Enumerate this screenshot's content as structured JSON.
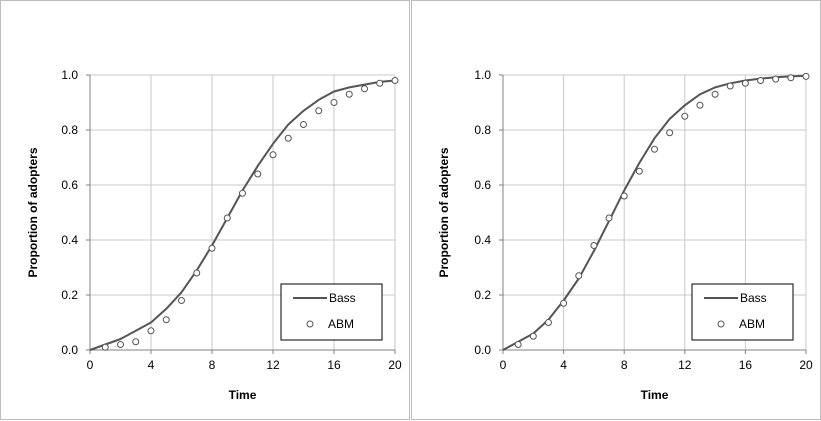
{
  "chart_data": [
    {
      "type": "line",
      "title": "",
      "xlabel": "Time",
      "ylabel": "Proportion of adopters",
      "xlim": [
        0,
        20
      ],
      "ylim": [
        0,
        1.0
      ],
      "xticks": [
        "0",
        "4",
        "8",
        "12",
        "16",
        "20"
      ],
      "yticks": [
        "0.0",
        "0.2",
        "0.4",
        "0.6",
        "0.8",
        "1.0"
      ],
      "grid": true,
      "legend_position": "bottom-right",
      "series": [
        {
          "name": "Bass",
          "style": "line",
          "color": "#555555",
          "x": [
            0,
            1,
            2,
            3,
            4,
            5,
            6,
            7,
            8,
            9,
            10,
            11,
            12,
            13,
            14,
            15,
            16,
            17,
            18,
            19,
            20
          ],
          "y": [
            0.0,
            0.02,
            0.04,
            0.07,
            0.1,
            0.15,
            0.21,
            0.29,
            0.38,
            0.48,
            0.58,
            0.67,
            0.75,
            0.82,
            0.87,
            0.91,
            0.94,
            0.955,
            0.965,
            0.975,
            0.98
          ]
        },
        {
          "name": "ABM",
          "style": "marker",
          "color": "#555555",
          "x": [
            1,
            2,
            3,
            4,
            5,
            6,
            7,
            8,
            9,
            10,
            11,
            12,
            13,
            14,
            15,
            16,
            17,
            18,
            19,
            20
          ],
          "y": [
            0.01,
            0.02,
            0.03,
            0.07,
            0.11,
            0.18,
            0.28,
            0.37,
            0.48,
            0.57,
            0.64,
            0.71,
            0.77,
            0.82,
            0.87,
            0.9,
            0.93,
            0.95,
            0.97,
            0.98
          ]
        }
      ]
    },
    {
      "type": "line",
      "title": "",
      "xlabel": "Time",
      "ylabel": "Proportion of adopters",
      "xlim": [
        0,
        20
      ],
      "ylim": [
        0,
        1.0
      ],
      "xticks": [
        "0",
        "4",
        "8",
        "12",
        "16",
        "20"
      ],
      "yticks": [
        "0.0",
        "0.2",
        "0.4",
        "0.6",
        "0.8",
        "1.0"
      ],
      "grid": true,
      "legend_position": "bottom-right",
      "series": [
        {
          "name": "Bass",
          "style": "line",
          "color": "#555555",
          "x": [
            0,
            1,
            2,
            3,
            4,
            5,
            6,
            7,
            8,
            9,
            10,
            11,
            12,
            13,
            14,
            15,
            16,
            17,
            18,
            19,
            20
          ],
          "y": [
            0.0,
            0.03,
            0.06,
            0.11,
            0.18,
            0.26,
            0.36,
            0.47,
            0.58,
            0.68,
            0.77,
            0.84,
            0.89,
            0.93,
            0.955,
            0.97,
            0.98,
            0.987,
            0.992,
            0.995,
            0.997
          ]
        },
        {
          "name": "ABM",
          "style": "marker",
          "color": "#555555",
          "x": [
            1,
            2,
            3,
            4,
            5,
            6,
            7,
            8,
            9,
            10,
            11,
            12,
            13,
            14,
            15,
            16,
            17,
            18,
            19,
            20
          ],
          "y": [
            0.02,
            0.05,
            0.1,
            0.17,
            0.27,
            0.38,
            0.48,
            0.56,
            0.65,
            0.73,
            0.79,
            0.85,
            0.89,
            0.93,
            0.96,
            0.97,
            0.98,
            0.985,
            0.99,
            0.995
          ]
        }
      ]
    }
  ]
}
